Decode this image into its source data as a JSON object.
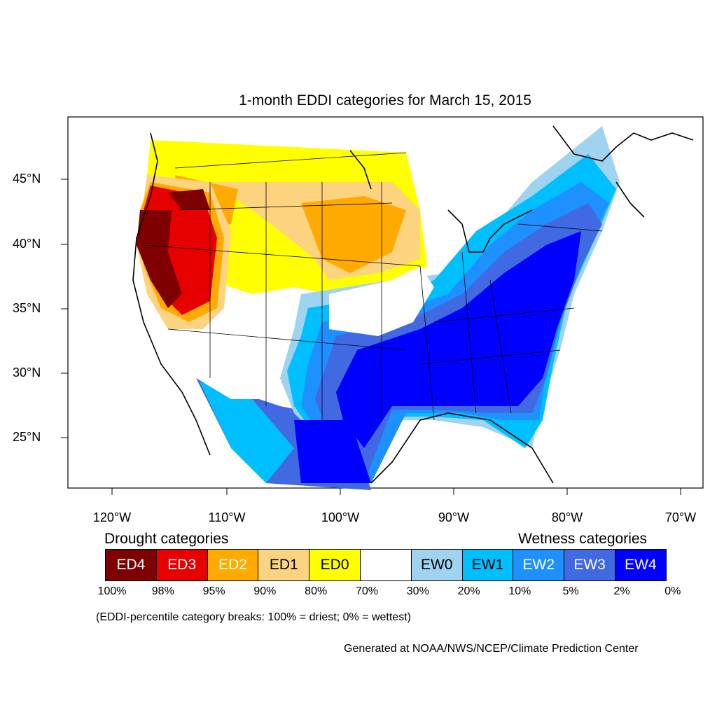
{
  "title": "1-month EDDI categories for March 15, 2015",
  "axes": {
    "lat_labels": [
      "45°N",
      "40°N",
      "35°N",
      "30°N",
      "25°N"
    ],
    "lon_labels": [
      "120°W",
      "110°W",
      "100°W",
      "90°W",
      "80°W",
      "70°W"
    ]
  },
  "legend": {
    "drought_heading": "Drought categories",
    "wetness_heading": "Wetness categories",
    "categories": [
      {
        "label": "ED4",
        "color": "#7f0000",
        "text_color": "#ffffff"
      },
      {
        "label": "ED3",
        "color": "#e60000",
        "text_color": "#ffffff"
      },
      {
        "label": "ED2",
        "color": "#ffaa00",
        "text_color": "#ffffff"
      },
      {
        "label": "ED1",
        "color": "#fcd37f",
        "text_color": "#000000"
      },
      {
        "label": "ED0",
        "color": "#ffff00",
        "text_color": "#000000"
      },
      {
        "label": "",
        "color": "#ffffff",
        "text_color": "#000000"
      },
      {
        "label": "EW0",
        "color": "#9fd3f0",
        "text_color": "#000000"
      },
      {
        "label": "EW1",
        "color": "#00bfff",
        "text_color": "#000000"
      },
      {
        "label": "EW2",
        "color": "#1e90ff",
        "text_color": "#ffffff"
      },
      {
        "label": "EW3",
        "color": "#4169e1",
        "text_color": "#ffffff"
      },
      {
        "label": "EW4",
        "color": "#0000ff",
        "text_color": "#ffffff"
      }
    ],
    "percent_breaks": [
      "100%",
      "98%",
      "95%",
      "90%",
      "80%",
      "70%",
      "30%",
      "20%",
      "10%",
      "5%",
      "2%",
      "0%"
    ],
    "note": "(EDDI-percentile category breaks: 100% = driest; 0% = wettest)"
  },
  "credit": "Generated at NOAA/NWS/NCEP/Climate Prediction Center"
}
